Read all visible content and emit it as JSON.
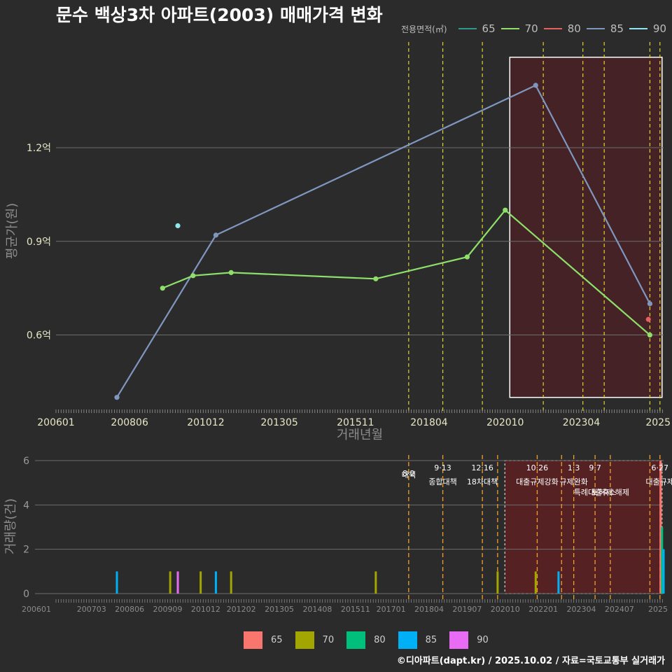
{
  "title": "문수 백상3차 아파트(2003) 매매가격 변화",
  "credit": "©디아파트(dapt.kr) / 2025.10.02 / 자료=국토교통부 실거래가",
  "legend_top": {
    "title": "전용면적(㎡)",
    "items": [
      {
        "label": "65",
        "color": "#2e9a8c"
      },
      {
        "label": "70",
        "color": "#8ee06a"
      },
      {
        "label": "80",
        "color": "#e85f5f"
      },
      {
        "label": "85",
        "color": "#7f97bf"
      },
      {
        "label": "90",
        "color": "#8fe6ee"
      }
    ]
  },
  "legend_bottom": {
    "items": [
      {
        "label": "65",
        "color": "#f8766d"
      },
      {
        "label": "70",
        "color": "#a3a500"
      },
      {
        "label": "80",
        "color": "#00bf7d"
      },
      {
        "label": "85",
        "color": "#00b0f6"
      },
      {
        "label": "90",
        "color": "#e76bf3"
      }
    ]
  },
  "chart_data": [
    {
      "type": "line",
      "name": "price-chart",
      "xlabel": "거래년월",
      "ylabel": "평균가(원)",
      "x_ticks": [
        "200601",
        "200806",
        "201012",
        "201305",
        "201511",
        "201804",
        "202010",
        "202304",
        "2025"
      ],
      "y_ticks": [
        {
          "value": 0.6,
          "label": "0.6억"
        },
        {
          "value": 0.9,
          "label": "0.9억"
        },
        {
          "value": 1.2,
          "label": "1.2억"
        }
      ],
      "ylim": [
        0.35,
        1.55
      ],
      "series": [
        {
          "name": "85",
          "color": "#7f97bf",
          "points": [
            [
              2008.0,
              0.4
            ],
            [
              2011.25,
              0.92
            ],
            [
              2021.75,
              1.4
            ],
            [
              2025.5,
              0.7
            ]
          ]
        },
        {
          "name": "70",
          "color": "#8ee06a",
          "points": [
            [
              2009.5,
              0.75
            ],
            [
              2010.5,
              0.79
            ],
            [
              2011.75,
              0.8
            ],
            [
              2016.5,
              0.78
            ],
            [
              2019.5,
              0.85
            ],
            [
              2020.75,
              1.0
            ],
            [
              2025.5,
              0.6
            ]
          ]
        },
        {
          "name": "90",
          "color": "#8fe6ee",
          "points": [
            [
              2010.0,
              0.95
            ]
          ]
        },
        {
          "name": "80",
          "color": "#e85f5f",
          "points": [
            [
              2025.45,
              0.65
            ]
          ]
        }
      ],
      "policy_lines": [
        2017.58,
        2018.7,
        2020.0,
        2022.0,
        2023.3,
        2024.0,
        2025.5,
        2025.83
      ],
      "highlight_range": [
        2020.9,
        2025.9
      ]
    },
    {
      "type": "bar",
      "name": "volume-chart",
      "ylabel": "거래량(건)",
      "x_ticks": [
        "200601",
        "200703",
        "200806",
        "200909",
        "201012",
        "201202",
        "201305",
        "201408",
        "201511",
        "201701",
        "201804",
        "201907",
        "202010",
        "202201",
        "202304",
        "202407",
        "2025"
      ],
      "y_ticks": [
        0,
        2,
        4,
        6
      ],
      "ylim": [
        0,
        6
      ],
      "bars": [
        {
          "x": 2008.0,
          "value": 1,
          "area": "85"
        },
        {
          "x": 2009.75,
          "value": 1,
          "area": "70"
        },
        {
          "x": 2010.0,
          "value": 1,
          "area": "90"
        },
        {
          "x": 2010.75,
          "value": 1,
          "area": "70"
        },
        {
          "x": 2011.25,
          "value": 1,
          "area": "85"
        },
        {
          "x": 2011.75,
          "value": 1,
          "area": "70"
        },
        {
          "x": 2016.5,
          "value": 1,
          "area": "70"
        },
        {
          "x": 2020.5,
          "value": 1,
          "area": "70"
        },
        {
          "x": 2021.75,
          "value": 1,
          "area": "70"
        },
        {
          "x": 2022.5,
          "value": 1,
          "area": "85"
        },
        {
          "x": 2025.85,
          "value": 6,
          "area": "65"
        },
        {
          "x": 2025.9,
          "value": 3,
          "area": "80"
        },
        {
          "x": 2025.95,
          "value": 2,
          "area": "85"
        }
      ],
      "policy_events": [
        {
          "x": 2017.58,
          "date": "8·2",
          "label": "대책"
        },
        {
          "x": 2018.7,
          "date": "9·13",
          "label": "종합대책"
        },
        {
          "x": 2020.0,
          "date": "12·16",
          "label": "18차대책"
        },
        {
          "x": 2020.5,
          "date": "",
          "label": ""
        },
        {
          "x": 2021.8,
          "date": "10·26",
          "label": "대출규제강화"
        },
        {
          "x": 2022.6,
          "date": "",
          "label": ""
        },
        {
          "x": 2023.0,
          "date": "1·3",
          "label": "규제완화"
        },
        {
          "x": 2023.7,
          "date": "9·7",
          "label": "특례대출축소"
        },
        {
          "x": 2024.2,
          "date": "",
          "label": "토허제 해제"
        },
        {
          "x": 2025.5,
          "date": "",
          "label": ""
        },
        {
          "x": 2025.83,
          "date": "6·27",
          "label": "대출규제"
        }
      ],
      "highlight_range": [
        2020.9,
        2025.9
      ]
    }
  ]
}
